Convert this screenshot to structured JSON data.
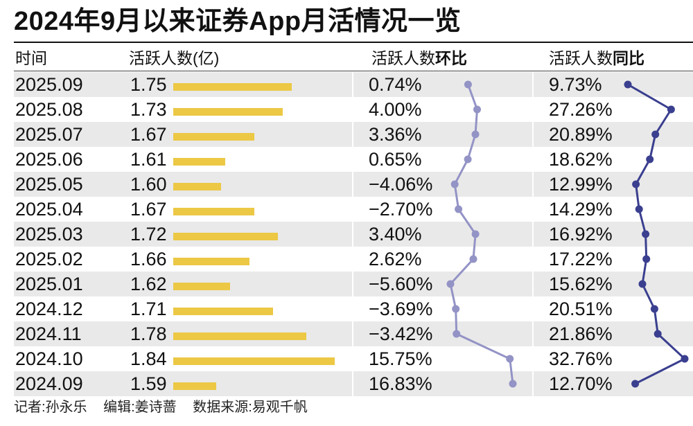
{
  "title": "2024年9月以来证券App月活情况一览",
  "headers": {
    "time": "时间",
    "active": "活跃人数(亿)",
    "mom_prefix": "活跃人数",
    "mom_suffix": "环比",
    "yoy_prefix": "活跃人数",
    "yoy_suffix": "同比"
  },
  "footer": {
    "reporter": "记者:孙永乐",
    "editor": "编辑:姜诗蔷",
    "source": "数据来源:易观千帆"
  },
  "colors": {
    "bar": "#ecc845",
    "mom_line": "#9393c6",
    "yoy_line": "#3a3f8f",
    "row_shade": "#e9e9e9"
  },
  "chart_data": {
    "type": "table",
    "rows": [
      {
        "month": "2025.09",
        "active": "1.75",
        "mom": "0.74%",
        "yoy": "9.73%"
      },
      {
        "month": "2025.08",
        "active": "1.73",
        "mom": "4.00%",
        "yoy": "27.26%"
      },
      {
        "month": "2025.07",
        "active": "1.67",
        "mom": "3.36%",
        "yoy": "20.89%"
      },
      {
        "month": "2025.06",
        "active": "1.61",
        "mom": "0.65%",
        "yoy": "18.62%"
      },
      {
        "month": "2025.05",
        "active": "1.60",
        "mom": "−4.06%",
        "yoy": "12.99%"
      },
      {
        "month": "2025.04",
        "active": "1.67",
        "mom": "−2.70%",
        "yoy": "14.29%"
      },
      {
        "month": "2025.03",
        "active": "1.72",
        "mom": "3.40%",
        "yoy": "16.92%"
      },
      {
        "month": "2025.02",
        "active": "1.66",
        "mom": "2.62%",
        "yoy": "17.22%"
      },
      {
        "month": "2025.01",
        "active": "1.62",
        "mom": "−5.60%",
        "yoy": "15.62%"
      },
      {
        "month": "2024.12",
        "active": "1.71",
        "mom": "−3.69%",
        "yoy": "20.51%"
      },
      {
        "month": "2024.11",
        "active": "1.78",
        "mom": "−3.42%",
        "yoy": "21.86%"
      },
      {
        "month": "2024.10",
        "active": "1.84",
        "mom": "15.75%",
        "yoy": "32.76%"
      },
      {
        "month": "2024.09",
        "active": "1.59",
        "mom": "16.83%",
        "yoy": "12.70%"
      }
    ],
    "active_values": [
      1.75,
      1.73,
      1.67,
      1.61,
      1.6,
      1.67,
      1.72,
      1.66,
      1.62,
      1.71,
      1.78,
      1.84,
      1.59
    ],
    "mom_values": [
      0.74,
      4.0,
      3.36,
      0.65,
      -4.06,
      -2.7,
      3.4,
      2.62,
      -5.6,
      -3.69,
      -3.42,
      15.75,
      16.83
    ],
    "yoy_values": [
      9.73,
      27.26,
      20.89,
      18.62,
      12.99,
      14.29,
      16.92,
      17.22,
      15.62,
      20.51,
      21.86,
      32.76,
      12.7
    ]
  }
}
